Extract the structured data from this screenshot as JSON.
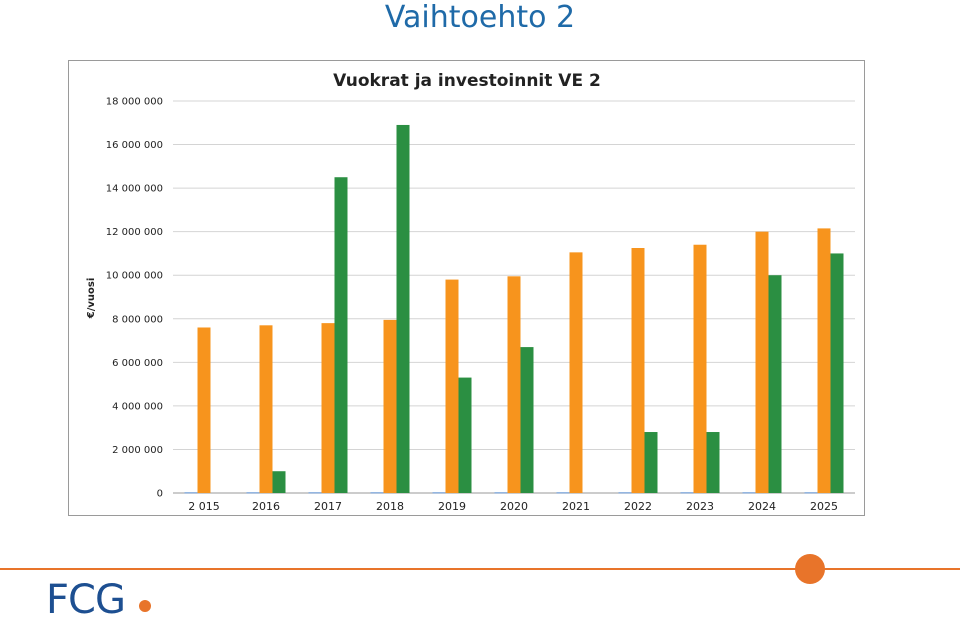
{
  "slide": {
    "title": "Vaihtoehto 2",
    "logo_text": "FCG"
  },
  "colors": {
    "series_a": "#f7941d",
    "series_b": "#2b8f42",
    "series_c": "#5b8fd1",
    "accent": "#e8742a",
    "title_blue": "#1f6aa8",
    "logo_blue": "#1d4f91",
    "grid": "#d4d4d4"
  },
  "chart_data": {
    "type": "bar",
    "title": "Vuokrat ja investoinnit VE 2",
    "ylabel": "€/vuosi",
    "xlabel": "",
    "categories": [
      "2 015",
      "2016",
      "2017",
      "2018",
      "2019",
      "2020",
      "2021",
      "2022",
      "2023",
      "2024",
      "2025"
    ],
    "ylim": [
      0,
      18000000
    ],
    "yticks": [
      0,
      2000000,
      4000000,
      6000000,
      8000000,
      10000000,
      12000000,
      14000000,
      16000000,
      18000000
    ],
    "ytick_labels": [
      "0",
      "2 000 000",
      "4 000 000",
      "6 000 000",
      "8 000 000",
      "10 000 000",
      "12 000 000",
      "14 000 000",
      "16 000 000",
      "18 000 000"
    ],
    "grid": true,
    "series": [
      {
        "values": [
          30000,
          30000,
          30000,
          30000,
          30000,
          30000,
          30000,
          30000,
          30000,
          30000,
          30000
        ]
      },
      {
        "values": [
          7600000,
          7700000,
          7800000,
          7950000,
          9800000,
          9950000,
          11050000,
          11250000,
          11400000,
          12000000,
          12150000
        ]
      },
      {
        "values": [
          0,
          1000000,
          14500000,
          16900000,
          5300000,
          6700000,
          0,
          2800000,
          2800000,
          10000000,
          11000000
        ]
      }
    ]
  }
}
